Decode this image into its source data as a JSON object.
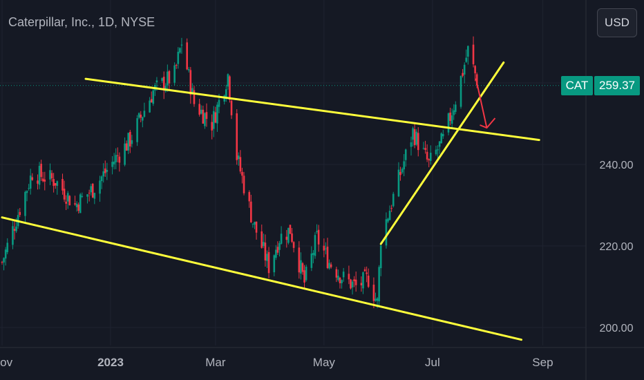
{
  "header": {
    "title": "Caterpillar, Inc., 1D, NYSE"
  },
  "currency_button": {
    "label": "USD"
  },
  "price_badge": {
    "symbol": "CAT",
    "price": "259.37"
  },
  "colors": {
    "background": "#151924",
    "up": "#089981",
    "down": "#f23645",
    "trendline": "#ffff3b",
    "grid": "#1f2330",
    "axis_text": "#b2b5be",
    "arrow": "#f23645"
  },
  "chart_data": {
    "type": "candlestick",
    "title": "Caterpillar, Inc., 1D, NYSE",
    "xlabel": "",
    "ylabel": "",
    "ylim": [
      194,
      280
    ],
    "x_ticks": [
      "Nov",
      "2023",
      "Mar",
      "May",
      "Jul",
      "Sep"
    ],
    "y_ticks": [
      "200.00",
      "220.00",
      "240.00"
    ],
    "last_price": 259.37,
    "grid": true,
    "anchor_closes": [
      [
        "2022-11-01",
        216
      ],
      [
        "2022-11-10",
        228
      ],
      [
        "2022-11-18",
        238
      ],
      [
        "2022-12-01",
        236
      ],
      [
        "2022-12-12",
        230
      ],
      [
        "2022-12-22",
        234
      ],
      [
        "2023-01-03",
        241
      ],
      [
        "2023-01-12",
        246
      ],
      [
        "2023-01-25",
        258
      ],
      [
        "2023-02-06",
        262
      ],
      [
        "2023-02-10",
        270
      ],
      [
        "2023-02-17",
        255
      ],
      [
        "2023-02-27",
        250
      ],
      [
        "2023-03-08",
        262
      ],
      [
        "2023-03-13",
        242
      ],
      [
        "2023-03-22",
        226
      ],
      [
        "2023-03-31",
        215
      ],
      [
        "2023-04-06",
        222
      ],
      [
        "2023-04-12",
        224
      ],
      [
        "2023-04-20",
        211
      ],
      [
        "2023-04-27",
        222
      ],
      [
        "2023-05-04",
        216
      ],
      [
        "2023-05-12",
        212
      ],
      [
        "2023-05-19",
        210
      ],
      [
        "2023-05-26",
        212
      ],
      [
        "2023-05-31",
        206
      ],
      [
        "2023-06-02",
        222
      ],
      [
        "2023-06-09",
        232
      ],
      [
        "2023-06-20",
        248
      ],
      [
        "2023-06-29",
        240
      ],
      [
        "2023-07-07",
        246
      ],
      [
        "2023-07-14",
        256
      ],
      [
        "2023-07-21",
        268
      ],
      [
        "2023-07-27",
        259.37
      ]
    ],
    "trendlines": [
      {
        "from": [
          "2022-12-18",
          261
        ],
        "to": [
          "2023-08-30",
          246
        ]
      },
      {
        "from": [
          "2022-11-01",
          227
        ],
        "to": [
          "2023-08-20",
          197
        ]
      },
      {
        "from": [
          "2023-06-02",
          220.5
        ],
        "to": [
          "2023-08-10",
          265
        ]
      }
    ],
    "projection_arrow": {
      "from": [
        "2023-07-27",
        256
      ],
      "to": [
        "2023-07-30",
        250
      ]
    }
  }
}
